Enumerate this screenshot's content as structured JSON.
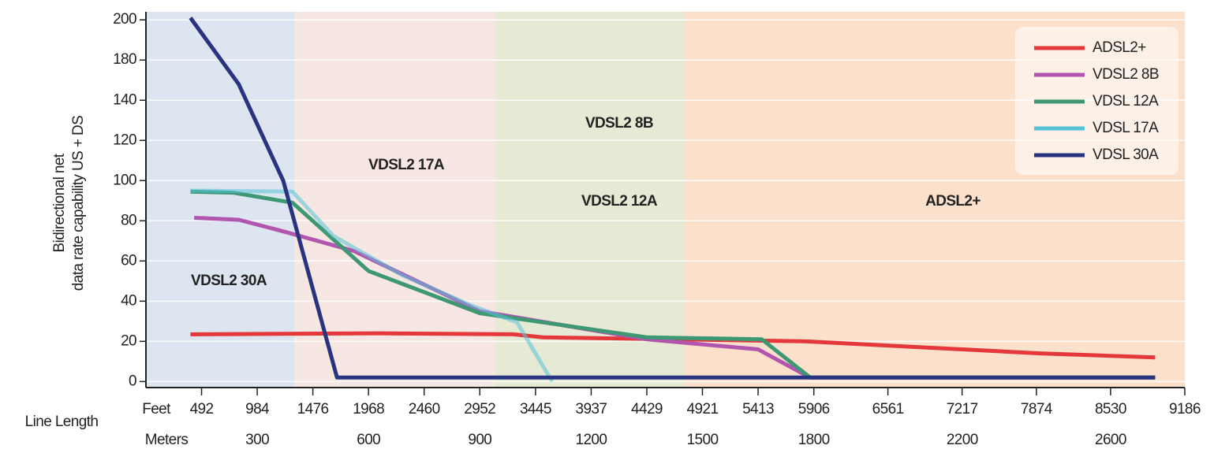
{
  "chart_data": {
    "type": "line",
    "y_label": [
      "Bidirectional net",
      "data rate capability US + DS"
    ],
    "x_label": "Line Length",
    "x_unit_label": "Meters",
    "x2_unit_label": "Feet",
    "xlim": [
      0,
      2800
    ],
    "xticks": [
      300,
      600,
      900,
      1200,
      1500,
      1800,
      2200,
      2600
    ],
    "x2ticks": [
      492,
      984,
      1476,
      1968,
      2460,
      2952,
      3445,
      3937,
      4429,
      4921,
      5413,
      5906,
      6561,
      7217,
      7874,
      8530,
      9186
    ],
    "ylim": [
      -3,
      184
    ],
    "yticks": [
      0,
      20,
      40,
      60,
      80,
      100,
      120,
      140,
      {
        "value": 160,
        "label": "180"
      },
      {
        "value": 180,
        "label": "200"
      }
    ],
    "grid": true,
    "legend": "upper right",
    "bands": [
      {
        "start": 0,
        "end": 400,
        "color": "#dde5f0"
      },
      {
        "start": 400,
        "end": 940,
        "color": "#f6e7e3"
      },
      {
        "start": 940,
        "end": 1450,
        "color": "#e6e9d4"
      },
      {
        "start": 1450,
        "end": 2800,
        "color": "#fbe1cb"
      }
    ],
    "annotations": [
      "VDSL2 30A",
      "VDSL2 17A",
      "VDSL2 8B",
      "VDSL2 12A",
      "ADSL2+"
    ],
    "series": [
      {
        "name": "ADSL2+",
        "color": "#e5383b",
        "x": [
          120,
          630,
          990,
          1070,
          1780,
          2200,
          2410,
          2720
        ],
        "values": [
          23.5,
          24,
          23.5,
          22,
          20,
          16,
          14,
          12
        ]
      },
      {
        "name": "VDSL2 8B",
        "color": "#b255ae",
        "x": [
          130,
          250,
          365,
          560,
          900,
          1350,
          1650,
          1790,
          2720
        ],
        "values": [
          81.5,
          80.5,
          75,
          65,
          35,
          21,
          16,
          2,
          2
        ]
      },
      {
        "name": "VDSL 12A",
        "color": "#3e9874",
        "x": [
          120,
          235,
          395,
          600,
          900,
          1350,
          1660,
          1790,
          2720
        ],
        "values": [
          94.5,
          94,
          89,
          55,
          34,
          22,
          21,
          2,
          2
        ]
      },
      {
        "name": "VDSL 17A",
        "color": "#55c2d8",
        "x": [
          120,
          395,
          505,
          690,
          875,
          1000,
          1095
        ],
        "values": [
          95,
          94.5,
          72.5,
          53,
          38,
          29.5,
          0
        ]
      },
      {
        "name": "VDSL 30A",
        "color": "#28347f",
        "x": [
          120,
          250,
          370,
          515,
          2720
        ],
        "values": [
          181,
          148,
          100,
          2,
          2
        ]
      }
    ]
  }
}
